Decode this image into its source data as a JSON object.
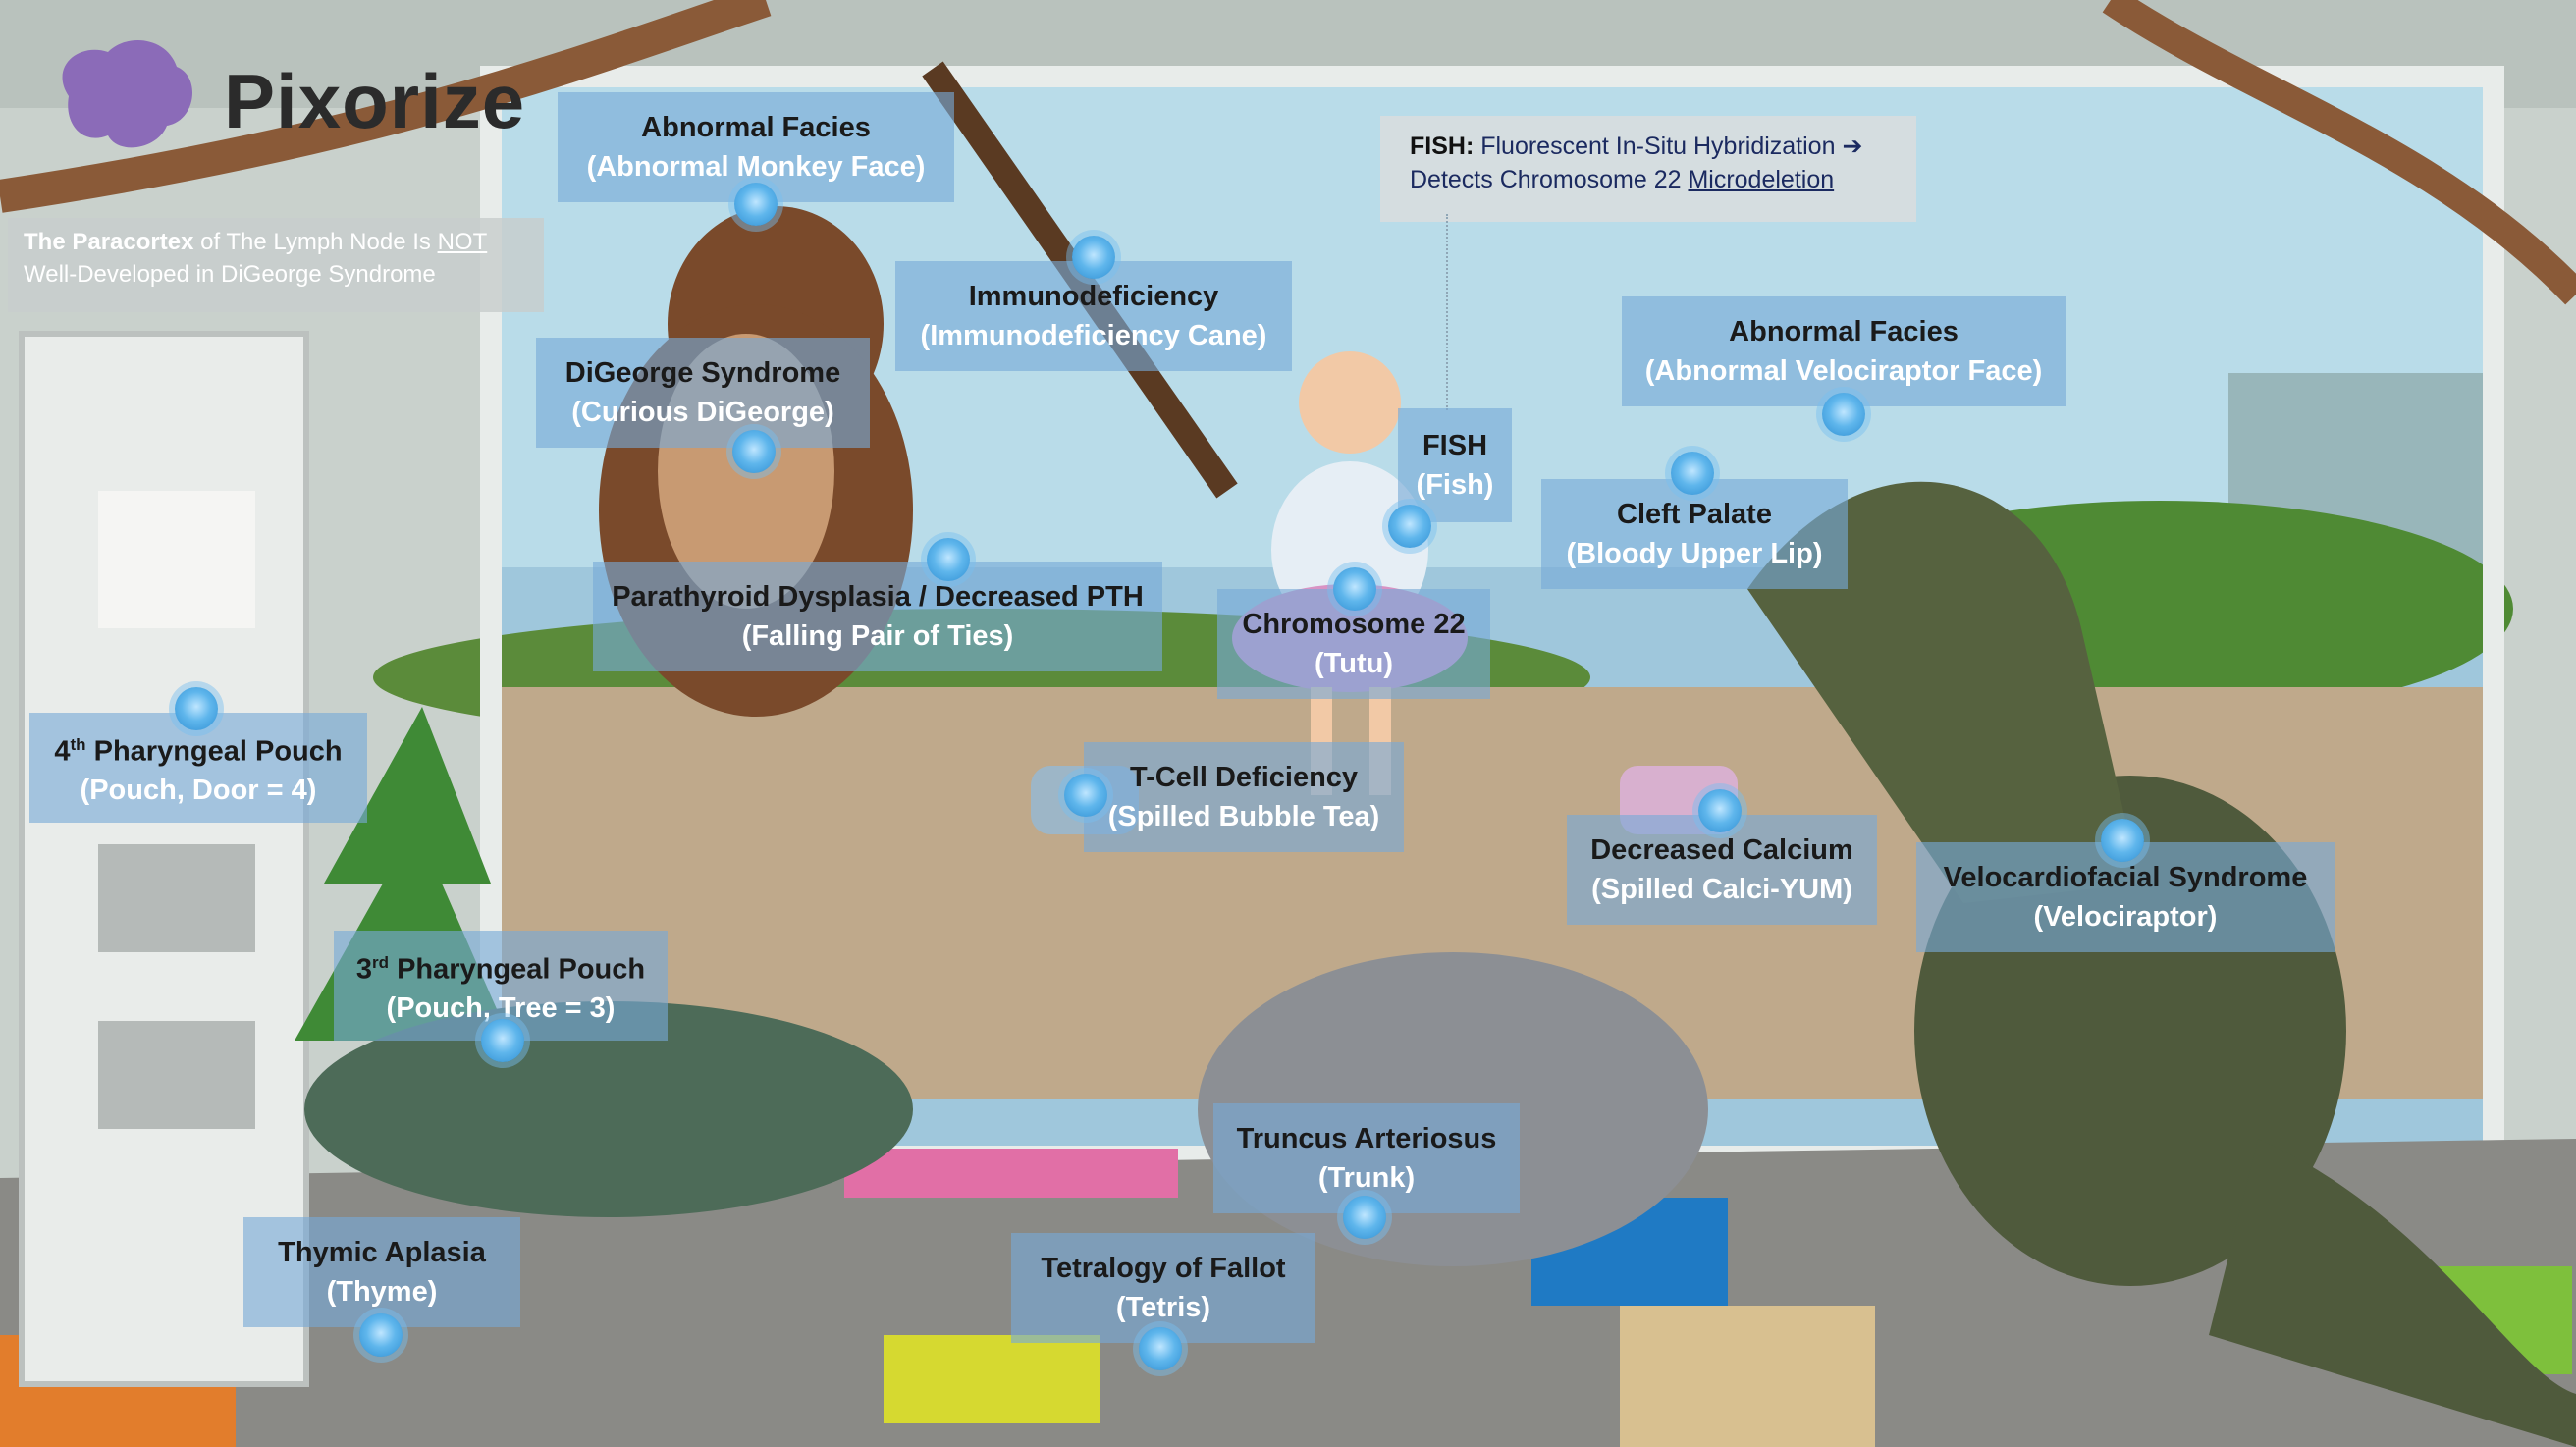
{
  "brand": {
    "name": "Pixorize",
    "logo_icon": "brain-logo-icon"
  },
  "note_paracortex": {
    "bold": "The Paracortex",
    "mid": " of The Lymph Node Is ",
    "underline": "NOT",
    "line2": "Well-Developed in DiGeorge Syndrome"
  },
  "note_fish": {
    "bold": "FISH:",
    "line1": " Fluorescent In-Situ Hybridization",
    "arrow": "➔",
    "line2_pre": "Detects Chromosome 22 ",
    "line2_link": "Microdeletion"
  },
  "labels": {
    "abnormal_facies_monkey": {
      "title": "Abnormal Facies",
      "sub": "(Abnormal Monkey Face)"
    },
    "immunodeficiency": {
      "title": "Immunodeficiency",
      "sub": "(Immunodeficiency Cane)"
    },
    "digeorge": {
      "title": "DiGeorge Syndrome",
      "sub": "(Curious DiGeorge)"
    },
    "parathyroid": {
      "title": "Parathyroid Dysplasia / Decreased PTH",
      "sub": "(Falling Pair of Ties)"
    },
    "fourth_pouch": {
      "title_pre": "4",
      "title_sup": "th",
      "title_post": " Pharyngeal Pouch",
      "sub": "(Pouch, Door = 4)"
    },
    "third_pouch": {
      "title_pre": "3",
      "title_sup": "rd",
      "title_post": " Pharyngeal Pouch",
      "sub": "(Pouch, Tree = 3)"
    },
    "thymic": {
      "title": "Thymic Aplasia",
      "sub": "(Thyme)"
    },
    "tcell": {
      "title": "T-Cell Deficiency",
      "sub": "(Spilled Bubble Tea)"
    },
    "fish": {
      "title": "FISH",
      "sub": "(Fish)"
    },
    "chromosome": {
      "title": "Chromosome 22",
      "sub": "(Tutu)"
    },
    "abnormal_facies_raptor": {
      "title": "Abnormal Facies",
      "sub": "(Abnormal Velociraptor Face)"
    },
    "cleft": {
      "title": "Cleft Palate",
      "sub": "(Bloody Upper Lip)"
    },
    "calcium": {
      "title": "Decreased Calcium",
      "sub": "(Spilled Calci-YUM)"
    },
    "velo": {
      "title": "Velocardiofacial Syndrome",
      "sub": "(Velociraptor)"
    },
    "truncus": {
      "title": "Truncus Arteriosus",
      "sub": "(Trunk)"
    },
    "tetralogy": {
      "title": "Tetralogy of Fallot",
      "sub": "(Tetris)"
    }
  },
  "colors": {
    "label_bg": "#78aad7",
    "hotspot": "#2f8fd3",
    "fish_note_text": "#1b2a60"
  }
}
